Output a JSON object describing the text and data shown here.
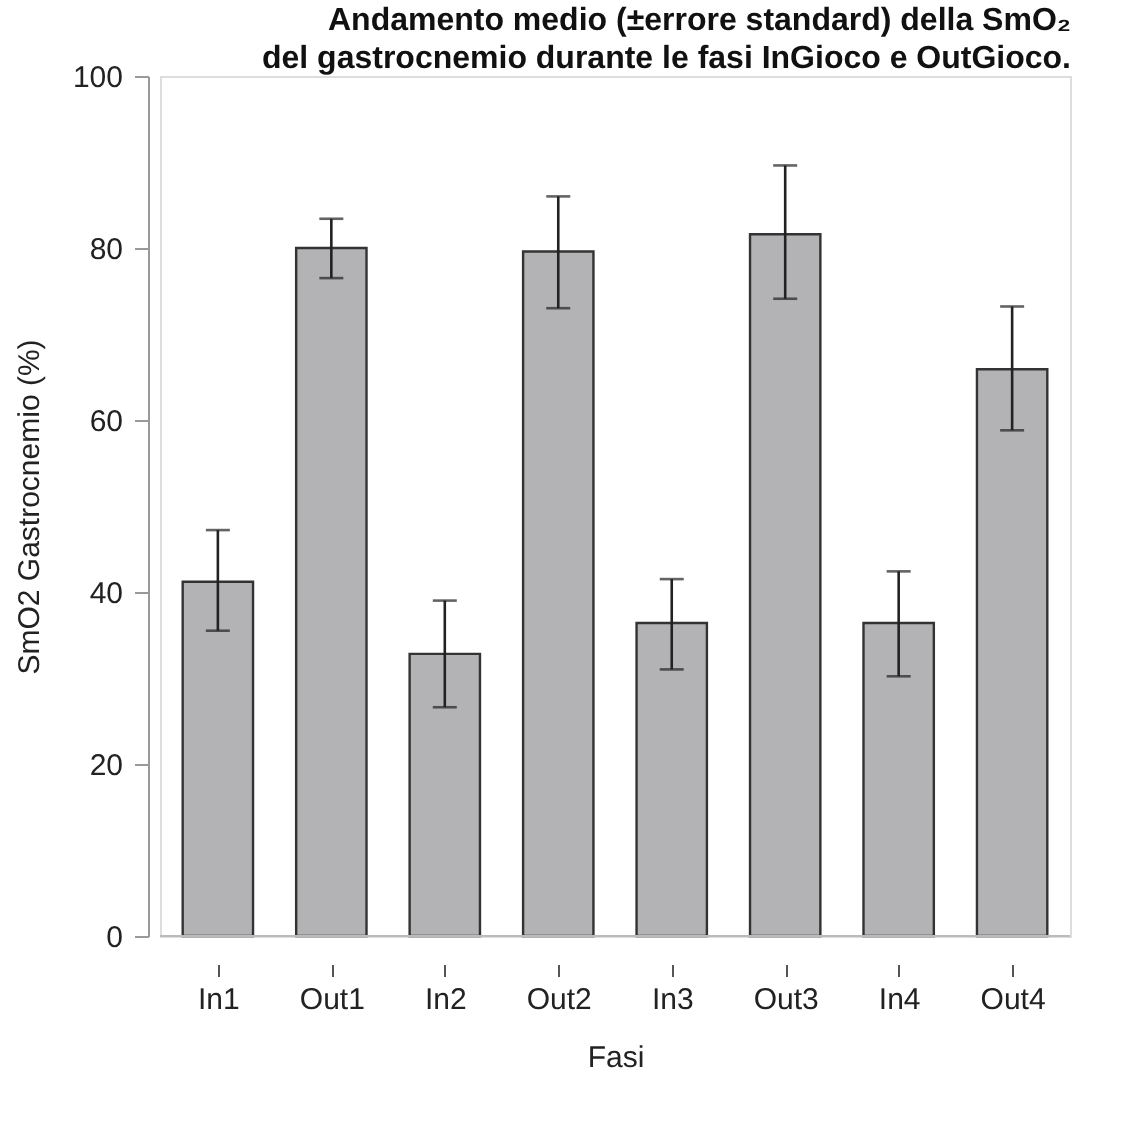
{
  "chart_data": {
    "type": "bar",
    "title": "Andamento medio (±errore standard) della SmO₂\ndel gastrocnemio durante le fasi InGioco e OutGioco.",
    "xlabel": "Fasi",
    "ylabel": "SmO2 Gastrocnemio (%)",
    "categories": [
      "In1",
      "Out1",
      "In2",
      "Out2",
      "In3",
      "Out3",
      "In4",
      "Out4"
    ],
    "values": [
      41.2,
      80.0,
      32.8,
      79.6,
      36.4,
      81.6,
      36.4,
      65.9
    ],
    "errors": [
      [
        35.5,
        47.2
      ],
      [
        76.5,
        83.4
      ],
      [
        26.6,
        39.0
      ],
      [
        73.0,
        86.0
      ],
      [
        31.0,
        41.5
      ],
      [
        74.1,
        89.6
      ],
      [
        30.2,
        42.4
      ],
      [
        58.8,
        73.2
      ]
    ],
    "color": "#b3b3b5",
    "ylim": [
      0,
      100
    ],
    "yticks": [
      0,
      20,
      40,
      60,
      80,
      100
    ]
  }
}
